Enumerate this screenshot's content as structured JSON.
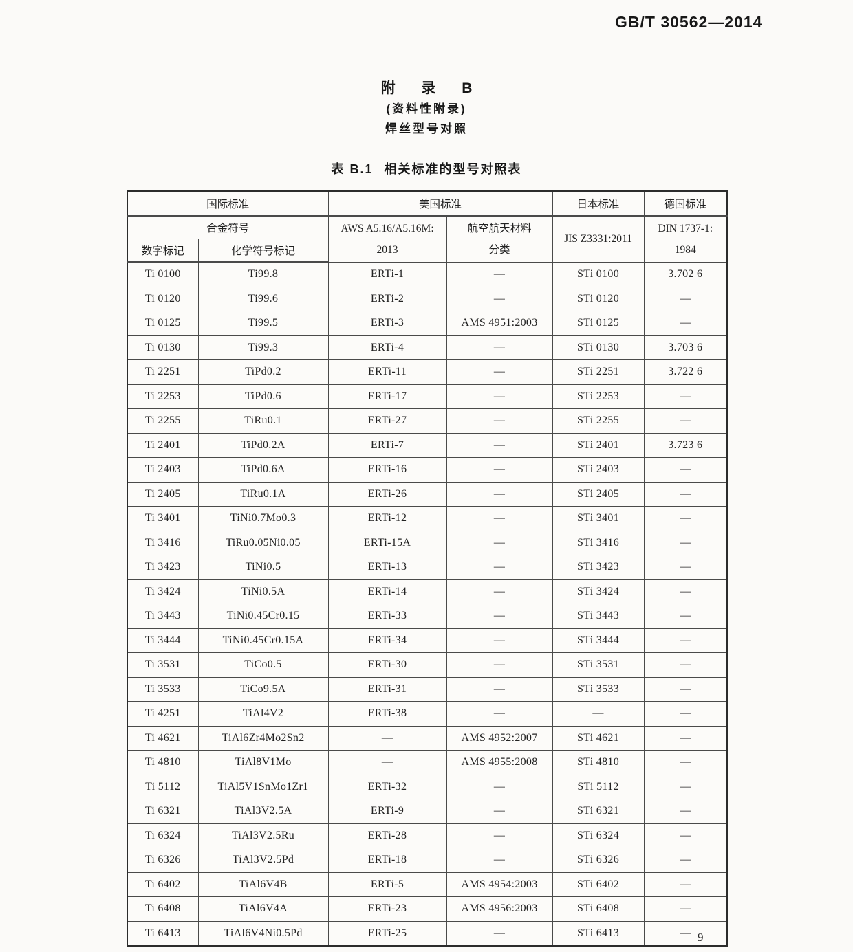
{
  "colors": {
    "ink": "#1f1f1f",
    "paper": "#fbfaf8",
    "table_border": "#3c3c3c"
  },
  "page": {
    "doc_number": "GB/T 30562—2014",
    "page_number": "9"
  },
  "appendix": {
    "title": "附 录 B",
    "subtitle": "(资料性附录)",
    "subject": "焊丝型号对照"
  },
  "table_caption": {
    "label": "表 B.1",
    "text": "相关标准的型号对照表"
  },
  "table": {
    "header": {
      "intl_standard": "国际标准",
      "alloy_symbol": "合金符号",
      "numeric_mark": "数字标记",
      "chemical_mark": "化学符号标记",
      "us_standard": "美国标准",
      "aws_line1": "AWS A5.16/A5.16M:",
      "aws_line2": "2013",
      "aerospace_line1": "航空航天材料",
      "aerospace_line2": "分类",
      "jp_standard": "日本标准",
      "jis": "JIS Z3331:2011",
      "de_standard": "德国标准",
      "din_line1": "DIN 1737-1:",
      "din_line2": "1984"
    },
    "rows": [
      [
        "Ti 0100",
        "Ti99.8",
        "ERTi-1",
        "—",
        "STi 0100",
        "3.702 6"
      ],
      [
        "Ti 0120",
        "Ti99.6",
        "ERTi-2",
        "—",
        "STi 0120",
        "—"
      ],
      [
        "Ti 0125",
        "Ti99.5",
        "ERTi-3",
        "AMS 4951:2003",
        "STi 0125",
        "—"
      ],
      [
        "Ti 0130",
        "Ti99.3",
        "ERTi-4",
        "—",
        "STi 0130",
        "3.703 6"
      ],
      [
        "Ti 2251",
        "TiPd0.2",
        "ERTi-11",
        "—",
        "STi 2251",
        "3.722 6"
      ],
      [
        "Ti 2253",
        "TiPd0.6",
        "ERTi-17",
        "—",
        "STi 2253",
        "—"
      ],
      [
        "Ti 2255",
        "TiRu0.1",
        "ERTi-27",
        "—",
        "STi 2255",
        "—"
      ],
      [
        "Ti 2401",
        "TiPd0.2A",
        "ERTi-7",
        "—",
        "STi 2401",
        "3.723 6"
      ],
      [
        "Ti 2403",
        "TiPd0.6A",
        "ERTi-16",
        "—",
        "STi 2403",
        "—"
      ],
      [
        "Ti 2405",
        "TiRu0.1A",
        "ERTi-26",
        "—",
        "STi 2405",
        "—"
      ],
      [
        "Ti 3401",
        "TiNi0.7Mo0.3",
        "ERTi-12",
        "—",
        "STi 3401",
        "—"
      ],
      [
        "Ti 3416",
        "TiRu0.05Ni0.05",
        "ERTi-15A",
        "—",
        "STi 3416",
        "—"
      ],
      [
        "Ti 3423",
        "TiNi0.5",
        "ERTi-13",
        "—",
        "STi 3423",
        "—"
      ],
      [
        "Ti 3424",
        "TiNi0.5A",
        "ERTi-14",
        "—",
        "STi 3424",
        "—"
      ],
      [
        "Ti 3443",
        "TiNi0.45Cr0.15",
        "ERTi-33",
        "—",
        "STi 3443",
        "—"
      ],
      [
        "Ti 3444",
        "TiNi0.45Cr0.15A",
        "ERTi-34",
        "—",
        "STi 3444",
        "—"
      ],
      [
        "Ti 3531",
        "TiCo0.5",
        "ERTi-30",
        "—",
        "STi 3531",
        "—"
      ],
      [
        "Ti 3533",
        "TiCo9.5A",
        "ERTi-31",
        "—",
        "STi 3533",
        "—"
      ],
      [
        "Ti 4251",
        "TiAl4V2",
        "ERTi-38",
        "—",
        "—",
        "—"
      ],
      [
        "Ti 4621",
        "TiAl6Zr4Mo2Sn2",
        "—",
        "AMS 4952:2007",
        "STi 4621",
        "—"
      ],
      [
        "Ti 4810",
        "TiAl8V1Mo",
        "—",
        "AMS 4955:2008",
        "STi 4810",
        "—"
      ],
      [
        "Ti 5112",
        "TiAl5V1SnMo1Zr1",
        "ERTi-32",
        "—",
        "STi 5112",
        "—"
      ],
      [
        "Ti 6321",
        "TiAl3V2.5A",
        "ERTi-9",
        "—",
        "STi 6321",
        "—"
      ],
      [
        "Ti 6324",
        "TiAl3V2.5Ru",
        "ERTi-28",
        "—",
        "STi 6324",
        "—"
      ],
      [
        "Ti 6326",
        "TiAl3V2.5Pd",
        "ERTi-18",
        "—",
        "STi 6326",
        "—"
      ],
      [
        "Ti 6402",
        "TiAl6V4B",
        "ERTi-5",
        "AMS 4954:2003",
        "STi 6402",
        "—"
      ],
      [
        "Ti 6408",
        "TiAl6V4A",
        "ERTi-23",
        "AMS 4956:2003",
        "STi 6408",
        "—"
      ],
      [
        "Ti 6413",
        "TiAl6V4Ni0.5Pd",
        "ERTi-25",
        "—",
        "STi 6413",
        "—"
      ]
    ]
  }
}
